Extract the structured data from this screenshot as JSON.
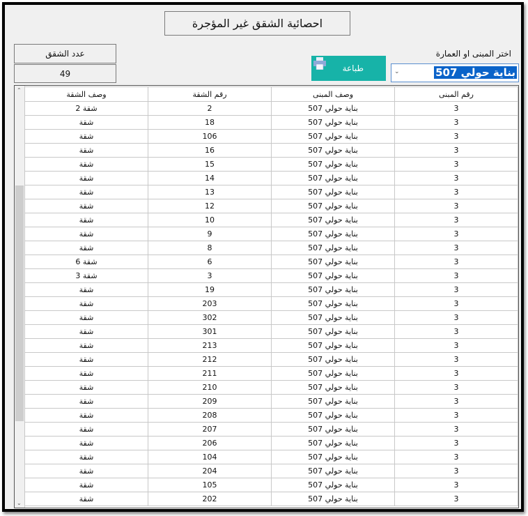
{
  "title": "احصائية الشقق غير المؤجرة",
  "count": {
    "label": "عدد الشقق",
    "value": "49"
  },
  "building_select": {
    "label": "اختر المبنى او العمارة",
    "value": "بناية حولي 507"
  },
  "print_button": {
    "label": "طباعة",
    "color": "#17b3a8"
  },
  "grid": {
    "columns": [
      "رقم المبنى",
      "وصف المبنى",
      "رقم الشقة",
      "وصف الشقة"
    ],
    "rows": [
      [
        "3",
        "بناية حولي 507",
        "2",
        "شقة 2"
      ],
      [
        "3",
        "بناية حولي 507",
        "18",
        "شقة"
      ],
      [
        "3",
        "بناية حولي 507",
        "106",
        "شقة"
      ],
      [
        "3",
        "بناية حولي 507",
        "16",
        "شقة"
      ],
      [
        "3",
        "بناية حولي 507",
        "15",
        "شقة"
      ],
      [
        "3",
        "بناية حولي 507",
        "14",
        "شقة"
      ],
      [
        "3",
        "بناية حولي 507",
        "13",
        "شقة"
      ],
      [
        "3",
        "بناية حولي 507",
        "12",
        "شقة"
      ],
      [
        "3",
        "بناية حولي 507",
        "10",
        "شقة"
      ],
      [
        "3",
        "بناية حولي 507",
        "9",
        "شقة"
      ],
      [
        "3",
        "بناية حولي 507",
        "8",
        "شقة"
      ],
      [
        "3",
        "بناية حولي 507",
        "6",
        "شقة 6"
      ],
      [
        "3",
        "بناية حولي 507",
        "3",
        "شقة 3"
      ],
      [
        "3",
        "بناية حولي 507",
        "19",
        "شقة"
      ],
      [
        "3",
        "بناية حولي 507",
        "203",
        "شقة"
      ],
      [
        "3",
        "بناية حولي 507",
        "302",
        "شقة"
      ],
      [
        "3",
        "بناية حولي 507",
        "301",
        "شقة"
      ],
      [
        "3",
        "بناية حولي 507",
        "213",
        "شقة"
      ],
      [
        "3",
        "بناية حولي 507",
        "212",
        "شقة"
      ],
      [
        "3",
        "بناية حولي 507",
        "211",
        "شقة"
      ],
      [
        "3",
        "بناية حولي 507",
        "210",
        "شقة"
      ],
      [
        "3",
        "بناية حولي 507",
        "209",
        "شقة"
      ],
      [
        "3",
        "بناية حولي 507",
        "208",
        "شقة"
      ],
      [
        "3",
        "بناية حولي 507",
        "207",
        "شقة"
      ],
      [
        "3",
        "بناية حولي 507",
        "206",
        "شقة"
      ],
      [
        "3",
        "بناية حولي 507",
        "104",
        "شقة"
      ],
      [
        "3",
        "بناية حولي 507",
        "204",
        "شقة"
      ],
      [
        "3",
        "بناية حولي 507",
        "105",
        "شقة"
      ],
      [
        "3",
        "بناية حولي 507",
        "202",
        "شقة"
      ]
    ]
  }
}
